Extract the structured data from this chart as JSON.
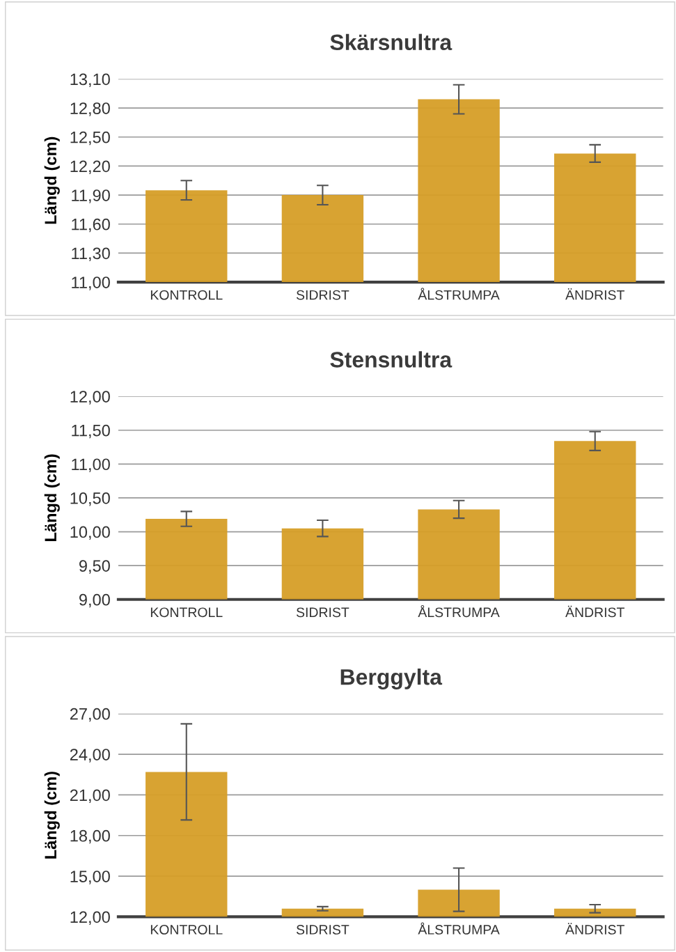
{
  "chart_data": [
    {
      "type": "bar",
      "title": "Skärsnultra",
      "ylabel": "Längd (cm)",
      "categories": [
        "KONTROLL",
        "SIDRIST",
        "ÅLSTRUMPA",
        "ÄNDRIST"
      ],
      "values": [
        11.95,
        11.9,
        12.89,
        12.33
      ],
      "errors": [
        0.1,
        0.1,
        0.15,
        0.09
      ],
      "color": "#d69e27",
      "ylim": [
        11.0,
        13.1
      ],
      "yticks": [
        {
          "value": 11.0,
          "label": "11,00"
        },
        {
          "value": 11.3,
          "label": "11,30"
        },
        {
          "value": 11.6,
          "label": "11,60"
        },
        {
          "value": 11.9,
          "label": "11,90"
        },
        {
          "value": 12.2,
          "label": "12,20"
        },
        {
          "value": 12.5,
          "label": "12,50"
        },
        {
          "value": 12.8,
          "label": "12,80"
        },
        {
          "value": 13.1,
          "label": "13,10"
        }
      ],
      "grid": "y"
    },
    {
      "type": "bar",
      "title": "Stensnultra",
      "ylabel": "Längd (cm)",
      "categories": [
        "KONTROLL",
        "SIDRIST",
        "ÅLSTRUMPA",
        "ÄNDRIST"
      ],
      "values": [
        10.19,
        10.05,
        10.33,
        11.34
      ],
      "errors": [
        0.11,
        0.12,
        0.13,
        0.14
      ],
      "color": "#d69e27",
      "ylim": [
        9.0,
        12.0
      ],
      "yticks": [
        {
          "value": 9.0,
          "label": "9,00"
        },
        {
          "value": 9.5,
          "label": "9,50"
        },
        {
          "value": 10.0,
          "label": "10,00"
        },
        {
          "value": 10.5,
          "label": "10,50"
        },
        {
          "value": 11.0,
          "label": "11,00"
        },
        {
          "value": 11.5,
          "label": "11,50"
        },
        {
          "value": 12.0,
          "label": "12,00"
        }
      ],
      "grid": "y"
    },
    {
      "type": "bar",
      "title": "Berggylta",
      "ylabel": "Längd (cm)",
      "categories": [
        "KONTROLL",
        "SIDRIST",
        "ÅLSTRUMPA",
        "ÄNDRIST"
      ],
      "values": [
        22.7,
        12.6,
        14.0,
        12.6
      ],
      "errors": [
        3.55,
        0.15,
        1.6,
        0.3
      ],
      "color": "#d69e27",
      "ylim": [
        12.0,
        27.0
      ],
      "yticks": [
        {
          "value": 12.0,
          "label": "12,00"
        },
        {
          "value": 15.0,
          "label": "15,00"
        },
        {
          "value": 18.0,
          "label": "18,00"
        },
        {
          "value": 21.0,
          "label": "21,00"
        },
        {
          "value": 24.0,
          "label": "24,00"
        },
        {
          "value": 27.0,
          "label": "27,00"
        }
      ],
      "grid": "y"
    }
  ]
}
